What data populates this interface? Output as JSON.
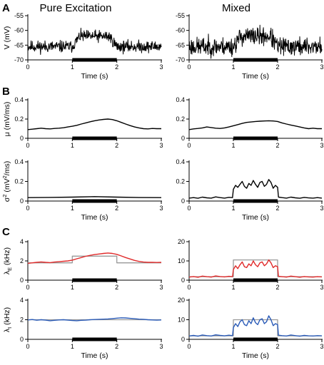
{
  "figure": {
    "column_titles": [
      "Pure Excitation",
      "Mixed"
    ],
    "panel_letters": [
      "A",
      "B",
      "C"
    ]
  },
  "chart_data": [
    {
      "id": "A-left",
      "type": "line",
      "panel": "A",
      "column": "Pure Excitation",
      "xlabel": "Time (s)",
      "ylabel": "V (mV)",
      "xlim": [
        0,
        3
      ],
      "ylim": [
        -70,
        -55
      ],
      "xticks": [
        0,
        1,
        2,
        3
      ],
      "yticks": [
        -55,
        -60,
        -65,
        -70
      ],
      "stimulus": [
        1,
        2
      ],
      "series": [
        {
          "color": "#000000",
          "kind": "noisy",
          "base": -65.5,
          "bump": 3.5,
          "noise": 1.4,
          "seed": 11
        }
      ]
    },
    {
      "id": "A-right",
      "type": "line",
      "panel": "A",
      "column": "Mixed",
      "xlabel": "Time (s)",
      "ylabel": "",
      "xlim": [
        0,
        3
      ],
      "ylim": [
        -70,
        -55
      ],
      "xticks": [
        0,
        1,
        2,
        3
      ],
      "yticks": [
        -55,
        -60,
        -65,
        -70
      ],
      "stimulus": [
        1,
        2
      ],
      "series": [
        {
          "color": "#000000",
          "kind": "noisy",
          "base": -65.5,
          "bump": 3.5,
          "noise": 2.2,
          "seed": 23
        }
      ]
    },
    {
      "id": "B1-left",
      "type": "line",
      "panel": "B",
      "column": "Pure Excitation",
      "xlabel": "",
      "ylabel": "μ (mV/ms)",
      "xlim": [
        0,
        3
      ],
      "ylim": [
        0,
        0.4
      ],
      "xticks": [
        0,
        1,
        2,
        3
      ],
      "yticks": [
        0,
        0.2,
        0.4
      ],
      "stimulus": [
        1,
        2
      ],
      "series": [
        {
          "color": "#000000",
          "x": [
            0,
            0.1,
            0.2,
            0.3,
            0.4,
            0.5,
            0.6,
            0.7,
            0.8,
            0.9,
            1.0,
            1.1,
            1.2,
            1.3,
            1.4,
            1.5,
            1.6,
            1.7,
            1.8,
            1.9,
            2.0,
            2.1,
            2.2,
            2.3,
            2.4,
            2.5,
            2.6,
            2.7,
            2.8,
            2.9,
            3.0
          ],
          "y": [
            0.09,
            0.095,
            0.1,
            0.105,
            0.1,
            0.098,
            0.102,
            0.105,
            0.11,
            0.118,
            0.125,
            0.135,
            0.148,
            0.16,
            0.172,
            0.182,
            0.19,
            0.196,
            0.2,
            0.195,
            0.182,
            0.165,
            0.148,
            0.132,
            0.118,
            0.108,
            0.1,
            0.098,
            0.102,
            0.1,
            0.1
          ]
        }
      ]
    },
    {
      "id": "B1-right",
      "type": "line",
      "panel": "B",
      "column": "Mixed",
      "xlabel": "",
      "ylabel": "",
      "xlim": [
        0,
        3
      ],
      "ylim": [
        0,
        0.4
      ],
      "xticks": [
        0,
        1,
        2,
        3
      ],
      "yticks": [
        0,
        0.2,
        0.4
      ],
      "stimulus": [
        1,
        2
      ],
      "series": [
        {
          "color": "#000000",
          "x": [
            0,
            0.1,
            0.2,
            0.3,
            0.4,
            0.5,
            0.6,
            0.7,
            0.8,
            0.9,
            1.0,
            1.1,
            1.2,
            1.3,
            1.4,
            1.5,
            1.6,
            1.7,
            1.8,
            1.9,
            2.0,
            2.1,
            2.2,
            2.3,
            2.4,
            2.5,
            2.6,
            2.7,
            2.8,
            2.9,
            3.0
          ],
          "y": [
            0.09,
            0.098,
            0.102,
            0.108,
            0.118,
            0.112,
            0.105,
            0.102,
            0.108,
            0.118,
            0.13,
            0.142,
            0.155,
            0.165,
            0.17,
            0.175,
            0.178,
            0.18,
            0.182,
            0.18,
            0.175,
            0.16,
            0.148,
            0.138,
            0.128,
            0.118,
            0.108,
            0.1,
            0.105,
            0.1,
            0.1
          ]
        }
      ]
    },
    {
      "id": "B2-left",
      "type": "line",
      "panel": "B",
      "column": "Pure Excitation",
      "xlabel": "Time (s)",
      "ylabel": "σ² (mV²/ms)",
      "xlim": [
        0,
        3
      ],
      "ylim": [
        0,
        0.4
      ],
      "xticks": [
        0,
        1,
        2,
        3
      ],
      "yticks": [
        0,
        0.2,
        0.4
      ],
      "stimulus": [
        1,
        2
      ],
      "series": [
        {
          "color": "#000000",
          "x": [
            0,
            0.5,
            1.0,
            1.5,
            2.0,
            2.5,
            3.0
          ],
          "y": [
            0.035,
            0.037,
            0.04,
            0.045,
            0.04,
            0.036,
            0.035
          ]
        }
      ]
    },
    {
      "id": "B2-right",
      "type": "line",
      "panel": "B",
      "column": "Mixed",
      "xlabel": "Time (s)",
      "ylabel": "",
      "xlim": [
        0,
        3
      ],
      "ylim": [
        0,
        0.4
      ],
      "xticks": [
        0,
        1,
        2,
        3
      ],
      "yticks": [
        0,
        0.2,
        0.4
      ],
      "stimulus": [
        1,
        2
      ],
      "series": [
        {
          "color": "#000000",
          "x": [
            0,
            0.1,
            0.2,
            0.3,
            0.4,
            0.5,
            0.6,
            0.7,
            0.8,
            0.9,
            0.98,
            1.0,
            1.05,
            1.1,
            1.15,
            1.2,
            1.25,
            1.3,
            1.35,
            1.4,
            1.45,
            1.5,
            1.55,
            1.6,
            1.65,
            1.7,
            1.75,
            1.8,
            1.85,
            1.9,
            1.95,
            2.0,
            2.02,
            2.1,
            2.2,
            2.3,
            2.4,
            2.5,
            2.6,
            2.7,
            2.8,
            2.9,
            3.0
          ],
          "y": [
            0.03,
            0.035,
            0.028,
            0.04,
            0.033,
            0.03,
            0.042,
            0.035,
            0.03,
            0.038,
            0.035,
            0.12,
            0.16,
            0.14,
            0.17,
            0.2,
            0.15,
            0.13,
            0.18,
            0.16,
            0.21,
            0.17,
            0.14,
            0.19,
            0.2,
            0.15,
            0.17,
            0.22,
            0.19,
            0.13,
            0.16,
            0.14,
            0.04,
            0.035,
            0.03,
            0.04,
            0.033,
            0.028,
            0.037,
            0.032,
            0.03,
            0.035,
            0.03
          ]
        }
      ]
    },
    {
      "id": "C1-left",
      "type": "line",
      "panel": "C",
      "column": "Pure Excitation",
      "xlabel": "",
      "ylabel": "λE (kHz)",
      "xlim": [
        0,
        3
      ],
      "ylim": [
        0,
        4
      ],
      "xticks": [
        0,
        1,
        2,
        3
      ],
      "yticks": [
        0,
        2,
        4
      ],
      "stimulus": [
        1,
        2
      ],
      "series": [
        {
          "color": "#999999",
          "x": [
            0,
            1,
            1,
            2,
            2,
            3
          ],
          "y": [
            1.8,
            1.8,
            2.5,
            2.5,
            1.8,
            1.8
          ]
        },
        {
          "color": "#e02a2a",
          "x": [
            0,
            0.1,
            0.2,
            0.3,
            0.4,
            0.5,
            0.6,
            0.7,
            0.8,
            0.9,
            1.0,
            1.1,
            1.2,
            1.3,
            1.4,
            1.5,
            1.6,
            1.7,
            1.8,
            1.9,
            2.0,
            2.1,
            2.2,
            2.3,
            2.4,
            2.5,
            2.6,
            2.7,
            2.8,
            2.9,
            3.0
          ],
          "y": [
            1.75,
            1.8,
            1.85,
            1.9,
            1.85,
            1.82,
            1.88,
            1.92,
            1.96,
            2.0,
            2.08,
            2.22,
            2.35,
            2.48,
            2.58,
            2.66,
            2.72,
            2.78,
            2.82,
            2.78,
            2.68,
            2.52,
            2.35,
            2.2,
            2.05,
            1.95,
            1.88,
            1.85,
            1.86,
            1.84,
            1.85
          ]
        }
      ]
    },
    {
      "id": "C1-right",
      "type": "line",
      "panel": "C",
      "column": "Mixed",
      "xlabel": "",
      "ylabel": "",
      "xlim": [
        0,
        3
      ],
      "ylim": [
        0,
        20
      ],
      "xticks": [
        0,
        1,
        2,
        3
      ],
      "yticks": [
        0,
        10,
        20
      ],
      "stimulus": [
        1,
        2
      ],
      "series": [
        {
          "color": "#999999",
          "x": [
            0,
            1,
            1,
            2,
            2,
            3
          ],
          "y": [
            1.8,
            1.8,
            10.5,
            10.5,
            1.8,
            1.8
          ]
        },
        {
          "color": "#e02a2a",
          "x": [
            0,
            0.1,
            0.2,
            0.3,
            0.4,
            0.5,
            0.6,
            0.7,
            0.8,
            0.9,
            0.98,
            1.0,
            1.05,
            1.1,
            1.15,
            1.2,
            1.25,
            1.3,
            1.35,
            1.4,
            1.45,
            1.5,
            1.55,
            1.6,
            1.65,
            1.7,
            1.75,
            1.8,
            1.85,
            1.9,
            1.95,
            2.0,
            2.02,
            2.1,
            2.2,
            2.3,
            2.4,
            2.5,
            2.6,
            2.7,
            2.8,
            2.9,
            3.0
          ],
          "y": [
            1.6,
            1.9,
            1.5,
            2.1,
            1.8,
            1.6,
            2.2,
            1.9,
            1.7,
            2.0,
            1.8,
            5.5,
            7.5,
            6.0,
            8.0,
            9.5,
            7.0,
            6.5,
            8.5,
            7.5,
            10.0,
            8.0,
            7.0,
            9.0,
            9.5,
            7.5,
            8.5,
            10.5,
            9.0,
            6.5,
            7.5,
            7.0,
            2.0,
            1.8,
            1.6,
            2.1,
            1.8,
            1.5,
            1.9,
            1.7,
            1.6,
            1.8,
            1.7
          ]
        }
      ]
    },
    {
      "id": "C2-left",
      "type": "line",
      "panel": "C",
      "column": "Pure Excitation",
      "xlabel": "Time (s)",
      "ylabel": "λI (kHz)",
      "xlim": [
        0,
        3
      ],
      "ylim": [
        0,
        4
      ],
      "xticks": [
        0,
        1,
        2,
        3
      ],
      "yticks": [
        0,
        2,
        4
      ],
      "stimulus": [
        1,
        2
      ],
      "series": [
        {
          "color": "#999999",
          "x": [
            0,
            3
          ],
          "y": [
            2.0,
            2.0
          ]
        },
        {
          "color": "#2a5bb8",
          "x": [
            0,
            0.1,
            0.2,
            0.3,
            0.4,
            0.5,
            0.6,
            0.7,
            0.8,
            0.9,
            1.0,
            1.1,
            1.2,
            1.3,
            1.4,
            1.5,
            1.6,
            1.7,
            1.8,
            1.9,
            2.0,
            2.1,
            2.2,
            2.3,
            2.4,
            2.5,
            2.6,
            2.7,
            2.8,
            2.9,
            3.0
          ],
          "y": [
            1.98,
            2.02,
            1.95,
            2.0,
            1.96,
            1.9,
            1.94,
            1.98,
            2.0,
            1.96,
            1.92,
            1.9,
            1.94,
            1.96,
            2.0,
            2.02,
            2.04,
            2.06,
            2.08,
            2.12,
            2.16,
            2.2,
            2.18,
            2.14,
            2.1,
            2.06,
            2.04,
            2.0,
            1.98,
            1.96,
            1.98
          ]
        }
      ]
    },
    {
      "id": "C2-right",
      "type": "line",
      "panel": "C",
      "column": "Mixed",
      "xlabel": "Time (s)",
      "ylabel": "",
      "xlim": [
        0,
        3
      ],
      "ylim": [
        0,
        20
      ],
      "xticks": [
        0,
        1,
        2,
        3
      ],
      "yticks": [
        0,
        10,
        20
      ],
      "stimulus": [
        1,
        2
      ],
      "series": [
        {
          "color": "#999999",
          "x": [
            0,
            1,
            1,
            2,
            2,
            3
          ],
          "y": [
            1.8,
            1.8,
            10.0,
            10.0,
            1.8,
            1.8
          ]
        },
        {
          "color": "#2a5bb8",
          "x": [
            0,
            0.1,
            0.2,
            0.3,
            0.4,
            0.5,
            0.6,
            0.7,
            0.8,
            0.9,
            0.98,
            1.0,
            1.05,
            1.1,
            1.15,
            1.2,
            1.25,
            1.3,
            1.35,
            1.4,
            1.45,
            1.5,
            1.55,
            1.6,
            1.65,
            1.7,
            1.75,
            1.8,
            1.85,
            1.9,
            1.95,
            2.0,
            2.02,
            2.1,
            2.2,
            2.3,
            2.4,
            2.5,
            2.6,
            2.7,
            2.8,
            2.9,
            3.0
          ],
          "y": [
            1.7,
            2.0,
            1.6,
            2.2,
            1.9,
            1.7,
            2.3,
            2.0,
            1.8,
            2.1,
            1.9,
            6.0,
            8.0,
            6.5,
            9.0,
            10.0,
            7.5,
            7.0,
            9.5,
            8.0,
            11.0,
            8.5,
            7.5,
            10.0,
            10.5,
            8.0,
            9.0,
            12.0,
            10.0,
            7.0,
            8.0,
            7.5,
            2.1,
            1.9,
            1.7,
            2.2,
            1.9,
            1.6,
            2.0,
            1.8,
            1.7,
            1.9,
            1.8
          ]
        }
      ]
    }
  ]
}
